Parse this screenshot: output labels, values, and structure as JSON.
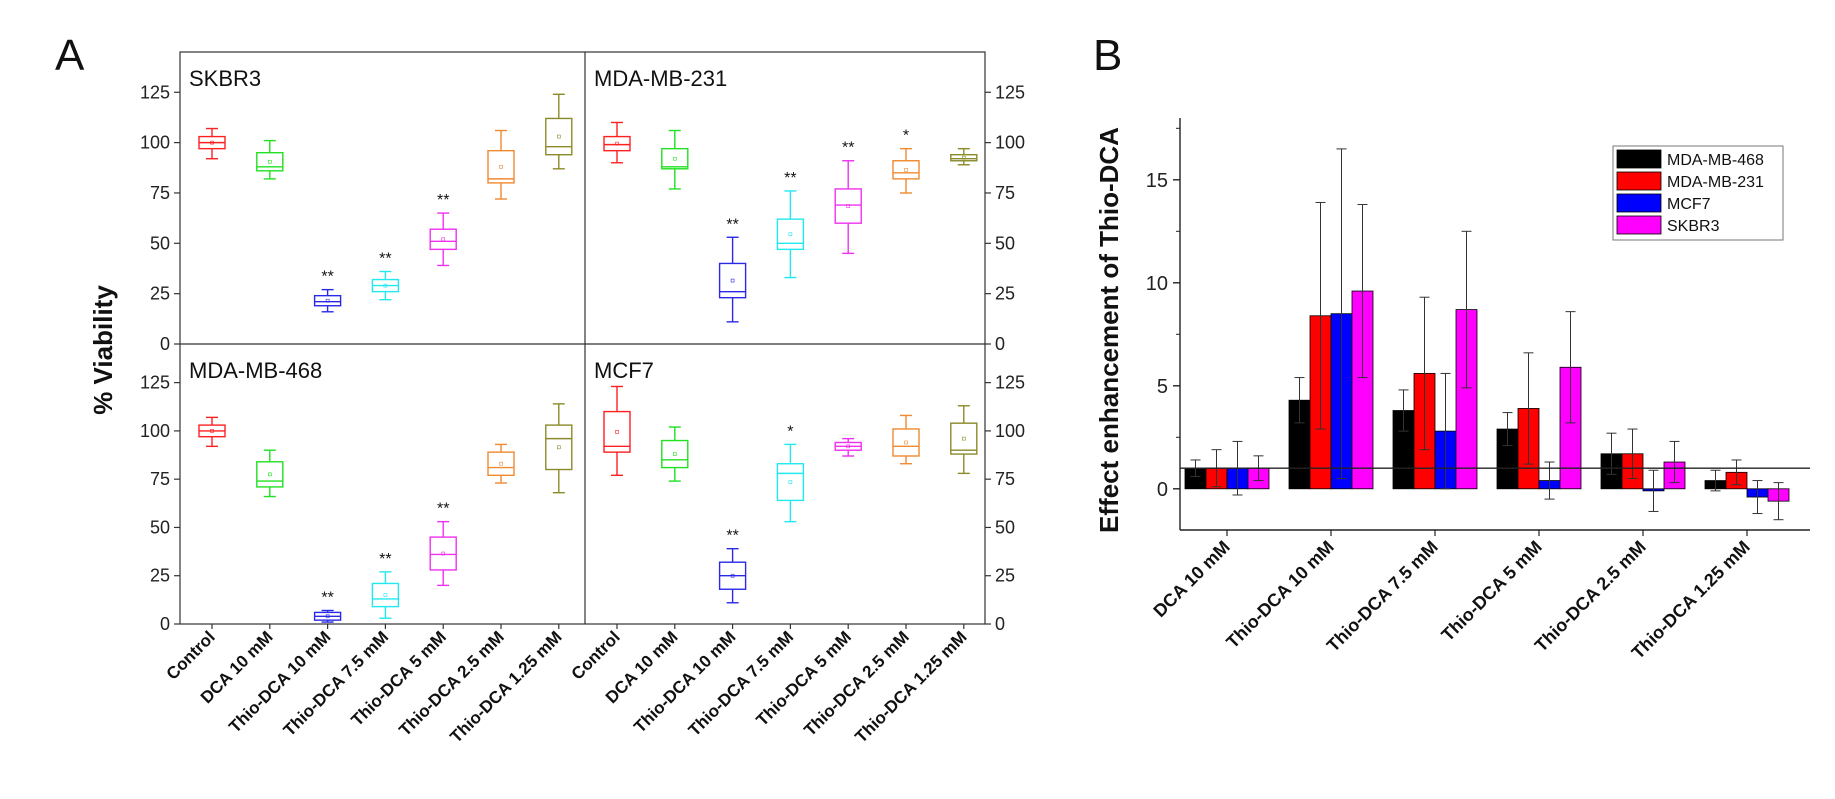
{
  "chart_data": [
    {
      "type": "box",
      "panel_label": "A",
      "ylabel": "% Viability",
      "categories": [
        "Control",
        "DCA 10 mM",
        "Thio-DCA 10 mM",
        "Thio-DCA 7.5 mM",
        "Thio-DCA 5 mM",
        "Thio-DCA 2.5 mM",
        "Thio-DCA 1.25 mM"
      ],
      "box_colors": [
        "#ff2020",
        "#22e022",
        "#2a2ae6",
        "#22e8f0",
        "#f030f0",
        "#f08a30",
        "#8a8a2a"
      ],
      "ylim": [
        0,
        145
      ],
      "yticks": [
        0,
        25,
        50,
        75,
        100,
        125
      ],
      "panels": [
        {
          "name": "SKBR3",
          "boxes": [
            {
              "min": 92,
              "q1": 97,
              "median": 100,
              "q3": 103,
              "max": 107,
              "sig": ""
            },
            {
              "min": 82,
              "q1": 86,
              "median": 88,
              "q3": 95,
              "max": 101,
              "sig": ""
            },
            {
              "min": 16,
              "q1": 19,
              "median": 21,
              "q3": 24,
              "max": 27,
              "sig": "**"
            },
            {
              "min": 22,
              "q1": 26,
              "median": 29,
              "q3": 32,
              "max": 36,
              "sig": "**"
            },
            {
              "min": 39,
              "q1": 47,
              "median": 51,
              "q3": 57,
              "max": 65,
              "sig": "**"
            },
            {
              "min": 72,
              "q1": 80,
              "median": 82,
              "q3": 96,
              "max": 106,
              "sig": ""
            },
            {
              "min": 87,
              "q1": 94,
              "median": 98,
              "q3": 112,
              "max": 124,
              "sig": ""
            }
          ]
        },
        {
          "name": "MDA-MB-231",
          "boxes": [
            {
              "min": 90,
              "q1": 96,
              "median": 99,
              "q3": 103,
              "max": 110,
              "sig": ""
            },
            {
              "min": 77,
              "q1": 87,
              "median": 88,
              "q3": 97,
              "max": 106,
              "sig": ""
            },
            {
              "min": 11,
              "q1": 23,
              "median": 26,
              "q3": 40,
              "max": 53,
              "sig": "**"
            },
            {
              "min": 33,
              "q1": 47,
              "median": 50,
              "q3": 62,
              "max": 76,
              "sig": "**"
            },
            {
              "min": 45,
              "q1": 60,
              "median": 69,
              "q3": 77,
              "max": 91,
              "sig": "**"
            },
            {
              "min": 75,
              "q1": 82,
              "median": 85,
              "q3": 91,
              "max": 97,
              "sig": "*"
            },
            {
              "min": 89,
              "q1": 91,
              "median": 92,
              "q3": 94,
              "max": 97,
              "sig": ""
            }
          ]
        },
        {
          "name": "MDA-MB-468",
          "boxes": [
            {
              "min": 92,
              "q1": 97,
              "median": 100,
              "q3": 103,
              "max": 107,
              "sig": ""
            },
            {
              "min": 66,
              "q1": 71,
              "median": 74,
              "q3": 84,
              "max": 90,
              "sig": ""
            },
            {
              "min": 1,
              "q1": 2,
              "median": 4,
              "q3": 6,
              "max": 7,
              "sig": "**"
            },
            {
              "min": 3,
              "q1": 9,
              "median": 13,
              "q3": 21,
              "max": 27,
              "sig": "**"
            },
            {
              "min": 20,
              "q1": 28,
              "median": 36,
              "q3": 45,
              "max": 53,
              "sig": "**"
            },
            {
              "min": 73,
              "q1": 77,
              "median": 81,
              "q3": 89,
              "max": 93,
              "sig": ""
            },
            {
              "min": 68,
              "q1": 80,
              "median": 96,
              "q3": 103,
              "max": 114,
              "sig": ""
            }
          ]
        },
        {
          "name": "MCF7",
          "boxes": [
            {
              "min": 77,
              "q1": 89,
              "median": 92,
              "q3": 110,
              "max": 123,
              "sig": ""
            },
            {
              "min": 74,
              "q1": 81,
              "median": 85,
              "q3": 95,
              "max": 102,
              "sig": ""
            },
            {
              "min": 11,
              "q1": 18,
              "median": 25,
              "q3": 32,
              "max": 39,
              "sig": "**"
            },
            {
              "min": 53,
              "q1": 64,
              "median": 78,
              "q3": 83,
              "max": 93,
              "sig": "*"
            },
            {
              "min": 87,
              "q1": 90,
              "median": 92,
              "q3": 94,
              "max": 96,
              "sig": ""
            },
            {
              "min": 83,
              "q1": 87,
              "median": 92,
              "q3": 101,
              "max": 108,
              "sig": ""
            },
            {
              "min": 78,
              "q1": 88,
              "median": 90,
              "q3": 104,
              "max": 113,
              "sig": ""
            }
          ]
        }
      ]
    },
    {
      "type": "bar",
      "panel_label": "B",
      "ylabel": "Effect enhancement of Thio-DCA",
      "categories": [
        "DCA 10 mM",
        "Thio-DCA 10 mM",
        "Thio-DCA 7.5 mM",
        "Thio-DCA 5 mM",
        "Thio-DCA 2.5 mM",
        "Thio-DCA 1.25 mM"
      ],
      "ylim": [
        -2,
        18
      ],
      "yticks": [
        0,
        5,
        10,
        15
      ],
      "reference_line": 1,
      "legend_position": "top-right",
      "series": [
        {
          "name": "MDA-MB-468",
          "color": "#000000",
          "values": [
            1.0,
            4.3,
            3.8,
            2.9,
            1.7,
            0.4
          ],
          "errors": [
            0.4,
            1.1,
            1.0,
            0.8,
            1.0,
            0.5
          ]
        },
        {
          "name": "MDA-MB-231",
          "color": "#ff0000",
          "values": [
            1.0,
            8.4,
            5.6,
            3.9,
            1.7,
            0.8
          ],
          "errors": [
            0.9,
            5.5,
            3.7,
            2.7,
            1.2,
            0.6
          ]
        },
        {
          "name": "MCF7",
          "color": "#0000ff",
          "values": [
            1.0,
            8.5,
            2.8,
            0.4,
            -0.1,
            -0.4
          ],
          "errors": [
            1.3,
            8.0,
            2.8,
            0.9,
            1.0,
            0.8
          ]
        },
        {
          "name": "SKBR3",
          "color": "#ff00ff",
          "values": [
            1.0,
            9.6,
            8.7,
            5.9,
            1.3,
            -0.6
          ],
          "errors": [
            0.6,
            4.2,
            3.8,
            2.7,
            1.0,
            0.9
          ]
        }
      ]
    }
  ]
}
